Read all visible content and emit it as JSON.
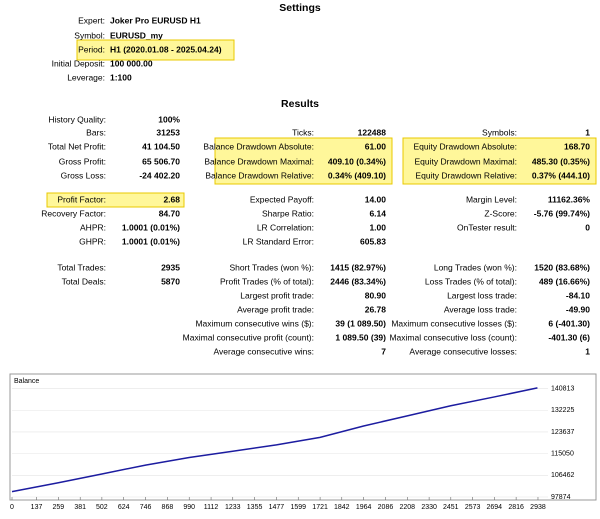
{
  "settings": {
    "title": "Settings",
    "rows": [
      [
        "Expert:",
        "Joker Pro EURUSD H1"
      ],
      [
        "Symbol:",
        "EURUSD_my"
      ],
      [
        "Period:",
        "H1 (2020.01.08 - 2025.04.24)"
      ],
      [
        "Initial Deposit:",
        "100 000.00"
      ],
      [
        "Leverage:",
        "1:100"
      ]
    ]
  },
  "results": {
    "title": "Results",
    "rows": [
      [
        [
          "History Quality:",
          "100%"
        ],
        null,
        null
      ],
      [
        [
          "Bars:",
          "31253"
        ],
        [
          "Ticks:",
          "122488"
        ],
        [
          "Symbols:",
          "1"
        ]
      ],
      [
        [
          "Total Net Profit:",
          "41 104.50"
        ],
        [
          "Balance Drawdown Absolute:",
          "61.00"
        ],
        [
          "Equity Drawdown Absolute:",
          "168.70"
        ]
      ],
      [
        [
          "Gross Profit:",
          "65 506.70"
        ],
        [
          "Balance Drawdown Maximal:",
          "409.10 (0.34%)"
        ],
        [
          "Equity Drawdown Maximal:",
          "485.30 (0.35%)"
        ]
      ],
      [
        [
          "Gross Loss:",
          "-24 402.20"
        ],
        [
          "Balance Drawdown Relative:",
          "0.34% (409.10)"
        ],
        [
          "Equity Drawdown Relative:",
          "0.37% (444.10)"
        ]
      ],
      [
        [
          "Profit Factor:",
          "2.68"
        ],
        [
          "Expected Payoff:",
          "14.00"
        ],
        [
          "Margin Level:",
          "11162.36%"
        ]
      ],
      [
        [
          "Recovery Factor:",
          "84.70"
        ],
        [
          "Sharpe Ratio:",
          "6.14"
        ],
        [
          "Z-Score:",
          "-5.76 (99.74%)"
        ]
      ],
      [
        [
          "AHPR:",
          "1.0001 (0.01%)"
        ],
        [
          "LR Correlation:",
          "1.00"
        ],
        [
          "OnTester result:",
          "0"
        ]
      ],
      [
        [
          "GHPR:",
          "1.0001 (0.01%)"
        ],
        [
          "LR Standard Error:",
          "605.83"
        ],
        null
      ],
      [
        [
          "Total Trades:",
          "2935"
        ],
        [
          "Short Trades (won %):",
          "1415 (82.97%)"
        ],
        [
          "Long Trades (won %):",
          "1520 (83.68%)"
        ]
      ],
      [
        [
          "Total Deals:",
          "5870"
        ],
        [
          "Profit Trades (% of total):",
          "2446 (83.34%)"
        ],
        [
          "Loss Trades (% of total):",
          "489 (16.66%)"
        ]
      ],
      [
        null,
        [
          "Largest profit trade:",
          "80.90"
        ],
        [
          "Largest loss trade:",
          "-84.10"
        ]
      ],
      [
        null,
        [
          "Average profit trade:",
          "26.78"
        ],
        [
          "Average loss trade:",
          "-49.90"
        ]
      ],
      [
        null,
        [
          "Maximum consecutive wins ($):",
          "39 (1 089.50)"
        ],
        [
          "Maximum consecutive losses ($):",
          "6 (-401.30)"
        ]
      ],
      [
        null,
        [
          "Maximal consecutive profit (count):",
          "1 089.50 (39)"
        ],
        [
          "Maximal consecutive loss (count):",
          "-401.30 (6)"
        ]
      ],
      [
        null,
        [
          "Average consecutive wins:",
          "7"
        ],
        [
          "Average consecutive losses:",
          "1"
        ]
      ]
    ]
  },
  "chart_data": {
    "type": "line",
    "title": "Balance",
    "color": "#1c1ca0",
    "x": [
      0,
      259,
      502,
      746,
      990,
      1233,
      1477,
      1721,
      1964,
      2208,
      2451,
      2694,
      2935
    ],
    "values": [
      100000,
      103500,
      107000,
      110500,
      113500,
      116000,
      118500,
      121500,
      126000,
      130000,
      134000,
      137500,
      141104.5
    ],
    "xlim": [
      0,
      2994
    ],
    "ylim": [
      97874,
      145000
    ],
    "xticks": [
      0,
      137,
      259,
      381,
      502,
      624,
      746,
      868,
      990,
      1112,
      1233,
      1355,
      1477,
      1599,
      1721,
      1842,
      1964,
      2086,
      2208,
      2330,
      2451,
      2573,
      2694,
      2816,
      2938
    ],
    "yticks": [
      97874,
      106462,
      115050,
      123637,
      132225,
      140813
    ],
    "grid": true
  }
}
